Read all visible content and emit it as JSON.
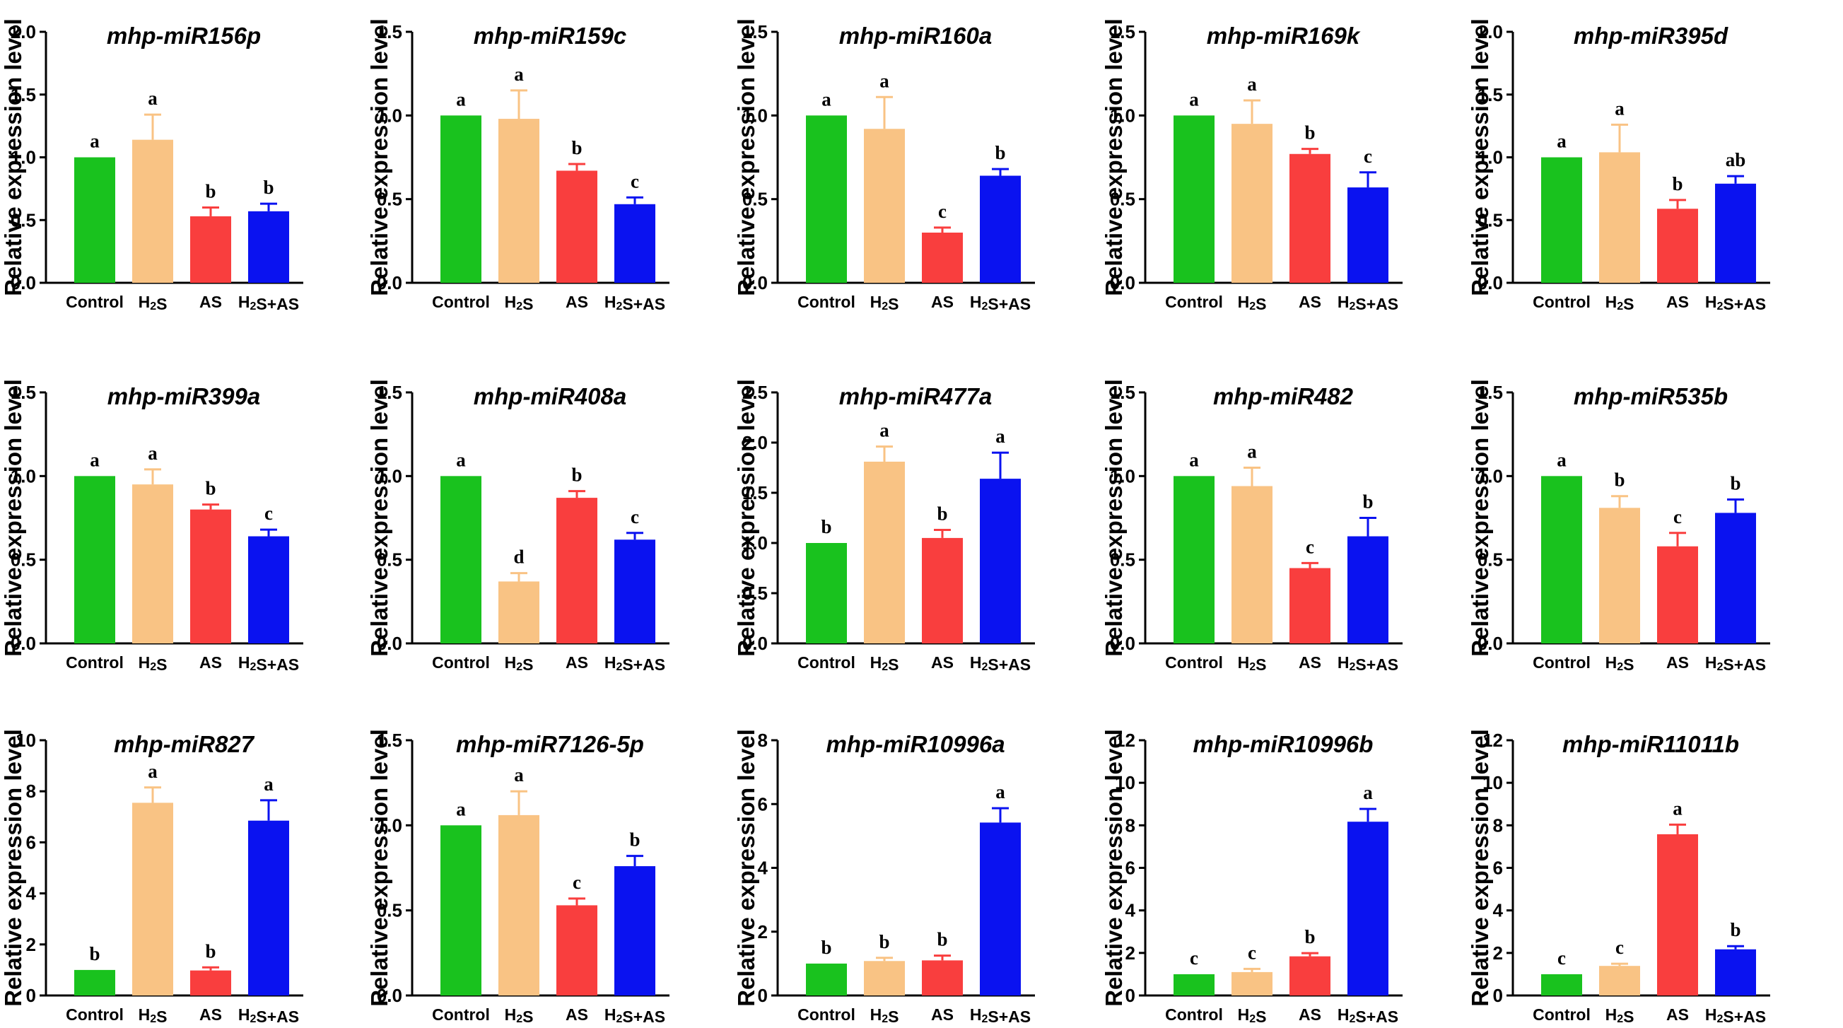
{
  "chart_data": [
    {
      "type": "bar",
      "title": "mhp-miR156p",
      "ylabel": "Relative expression level",
      "ylim": [
        0,
        2.0
      ],
      "yticks": [
        "0.0",
        "0.5",
        "1.0",
        "1.5",
        "2.0"
      ],
      "categories": [
        "Control",
        "H₂S",
        "AS",
        "H₂S+AS"
      ],
      "values": [
        1.0,
        1.14,
        0.53,
        0.57
      ],
      "errors": [
        0,
        0.2,
        0.07,
        0.06
      ],
      "letters": [
        "a",
        "a",
        "b",
        "b"
      ]
    },
    {
      "type": "bar",
      "title": "mhp-miR159c",
      "ylabel": "Relative expression level",
      "ylim": [
        0,
        1.5
      ],
      "yticks": [
        "0.0",
        "0.5",
        "1.0",
        "1.5"
      ],
      "categories": [
        "Control",
        "H₂S",
        "AS",
        "H₂S+AS"
      ],
      "values": [
        1.0,
        0.98,
        0.67,
        0.47
      ],
      "errors": [
        0,
        0.17,
        0.04,
        0.04
      ],
      "letters": [
        "a",
        "a",
        "b",
        "c"
      ]
    },
    {
      "type": "bar",
      "title": "mhp-miR160a",
      "ylabel": "Relative expression level",
      "ylim": [
        0,
        1.5
      ],
      "yticks": [
        "0.0",
        "0.5",
        "1.0",
        "1.5"
      ],
      "categories": [
        "Control",
        "H₂S",
        "AS",
        "H₂S+AS"
      ],
      "values": [
        1.0,
        0.92,
        0.3,
        0.64
      ],
      "errors": [
        0,
        0.19,
        0.03,
        0.04
      ],
      "letters": [
        "a",
        "a",
        "c",
        "b"
      ]
    },
    {
      "type": "bar",
      "title": "mhp-miR169k",
      "ylabel": "Relative expression level",
      "ylim": [
        0,
        1.5
      ],
      "yticks": [
        "0.0",
        "0.5",
        "1.0",
        "1.5"
      ],
      "categories": [
        "Control",
        "H₂S",
        "AS",
        "H₂S+AS"
      ],
      "values": [
        1.0,
        0.95,
        0.77,
        0.57
      ],
      "errors": [
        0,
        0.14,
        0.03,
        0.09
      ],
      "letters": [
        "a",
        "a",
        "b",
        "c"
      ]
    },
    {
      "type": "bar",
      "title": "mhp-miR395d",
      "ylabel": "Relative expression level",
      "ylim": [
        0,
        2.0
      ],
      "yticks": [
        "0.0",
        "0.5",
        "1.0",
        "1.5",
        "2.0"
      ],
      "categories": [
        "Control",
        "H₂S",
        "AS",
        "H₂S+AS"
      ],
      "values": [
        1.0,
        1.04,
        0.59,
        0.79
      ],
      "errors": [
        0,
        0.22,
        0.07,
        0.06
      ],
      "letters": [
        "a",
        "a",
        "b",
        "ab"
      ]
    },
    {
      "type": "bar",
      "title": "mhp-miR399a",
      "ylabel": "Relative expression level",
      "ylim": [
        0,
        1.5
      ],
      "yticks": [
        "0.0",
        "0.5",
        "1.0",
        "1.5"
      ],
      "categories": [
        "Control",
        "H₂S",
        "AS",
        "H₂S+AS"
      ],
      "values": [
        1.0,
        0.95,
        0.8,
        0.64
      ],
      "errors": [
        0,
        0.09,
        0.03,
        0.04
      ],
      "letters": [
        "a",
        "a",
        "b",
        "c"
      ]
    },
    {
      "type": "bar",
      "title": "mhp-miR408a",
      "ylabel": "Relative expression level",
      "ylim": [
        0,
        1.5
      ],
      "yticks": [
        "0.0",
        "0.5",
        "1.0",
        "1.5"
      ],
      "categories": [
        "Control",
        "H₂S",
        "AS",
        "H₂S+AS"
      ],
      "values": [
        1.0,
        0.37,
        0.87,
        0.62
      ],
      "errors": [
        0,
        0.05,
        0.04,
        0.04
      ],
      "letters": [
        "a",
        "d",
        "b",
        "c"
      ]
    },
    {
      "type": "bar",
      "title": "mhp-miR477a",
      "ylabel": "Relative expression level",
      "ylim": [
        0,
        2.5
      ],
      "yticks": [
        "0.0",
        "0.5",
        "1.0",
        "1.5",
        "2.0",
        "2.5"
      ],
      "categories": [
        "Control",
        "H₂S",
        "AS",
        "H₂S+AS"
      ],
      "values": [
        1.0,
        1.81,
        1.05,
        1.64
      ],
      "errors": [
        0,
        0.15,
        0.08,
        0.26
      ],
      "letters": [
        "b",
        "a",
        "b",
        "a"
      ]
    },
    {
      "type": "bar",
      "title": "mhp-miR482",
      "ylabel": "Relative expression level",
      "ylim": [
        0,
        1.5
      ],
      "yticks": [
        "0.0",
        "0.5",
        "1.0",
        "1.5"
      ],
      "categories": [
        "Control",
        "H₂S",
        "AS",
        "H₂S+AS"
      ],
      "values": [
        1.0,
        0.94,
        0.45,
        0.64
      ],
      "errors": [
        0,
        0.11,
        0.03,
        0.11
      ],
      "letters": [
        "a",
        "a",
        "c",
        "b"
      ]
    },
    {
      "type": "bar",
      "title": "mhp-miR535b",
      "ylabel": "Relative expression level",
      "ylim": [
        0,
        1.5
      ],
      "yticks": [
        "0.0",
        "0.5",
        "1.0",
        "1.5"
      ],
      "categories": [
        "Control",
        "H₂S",
        "AS",
        "H₂S+AS"
      ],
      "values": [
        1.0,
        0.81,
        0.58,
        0.78
      ],
      "errors": [
        0,
        0.07,
        0.08,
        0.08
      ],
      "letters": [
        "a",
        "b",
        "c",
        "b"
      ]
    },
    {
      "type": "bar",
      "title": "mhp-miR827",
      "ylabel": "Relative expression level",
      "ylim": [
        0,
        10
      ],
      "yticks": [
        "0",
        "2",
        "4",
        "6",
        "8",
        "10"
      ],
      "categories": [
        "Control",
        "H₂S",
        "AS",
        "H₂S+AS"
      ],
      "values": [
        1.0,
        7.55,
        0.98,
        6.85
      ],
      "errors": [
        0,
        0.6,
        0.12,
        0.8
      ],
      "letters": [
        "b",
        "a",
        "b",
        "a"
      ]
    },
    {
      "type": "bar",
      "title": "mhp-miR7126-5p",
      "ylabel": "Relative expression level",
      "ylim": [
        0,
        1.5
      ],
      "yticks": [
        "0.0",
        "0.5",
        "1.0",
        "1.5"
      ],
      "categories": [
        "Control",
        "H₂S",
        "AS",
        "H₂S+AS"
      ],
      "values": [
        1.0,
        1.06,
        0.53,
        0.76
      ],
      "errors": [
        0,
        0.14,
        0.04,
        0.06
      ],
      "letters": [
        "a",
        "a",
        "c",
        "b"
      ]
    },
    {
      "type": "bar",
      "title": "mhp-miR10996a",
      "ylabel": "Relative expression level",
      "ylim": [
        0,
        8
      ],
      "yticks": [
        "0",
        "2",
        "4",
        "6",
        "8"
      ],
      "categories": [
        "Control",
        "H₂S",
        "AS",
        "H₂S+AS"
      ],
      "values": [
        1.0,
        1.08,
        1.1,
        5.42
      ],
      "errors": [
        0,
        0.1,
        0.15,
        0.45
      ],
      "letters": [
        "b",
        "b",
        "b",
        "a"
      ]
    },
    {
      "type": "bar",
      "title": "mhp-miR10996b",
      "ylabel": "Relative expression level",
      "ylim": [
        0,
        12
      ],
      "yticks": [
        "0",
        "2",
        "4",
        "6",
        "8",
        "10",
        "12"
      ],
      "categories": [
        "Control",
        "H₂S",
        "AS",
        "H₂S+AS"
      ],
      "values": [
        1.0,
        1.1,
        1.84,
        8.17
      ],
      "errors": [
        0,
        0.15,
        0.15,
        0.6
      ],
      "letters": [
        "c",
        "c",
        "b",
        "a"
      ]
    },
    {
      "type": "bar",
      "title": "mhp-miR11011b",
      "ylabel": "Relative expression level",
      "ylim": [
        0,
        12
      ],
      "yticks": [
        "0",
        "2",
        "4",
        "6",
        "8",
        "10",
        "12"
      ],
      "categories": [
        "Control",
        "H₂S",
        "AS",
        "H₂S+AS"
      ],
      "values": [
        1.0,
        1.39,
        7.58,
        2.17
      ],
      "errors": [
        0,
        0.1,
        0.45,
        0.15
      ],
      "letters": [
        "c",
        "c",
        "a",
        "b"
      ]
    }
  ],
  "colors": {
    "bars": [
      "#19c21e",
      "#f9c384",
      "#f93e3e",
      "#0a12f0"
    ],
    "axis": "#000000"
  }
}
